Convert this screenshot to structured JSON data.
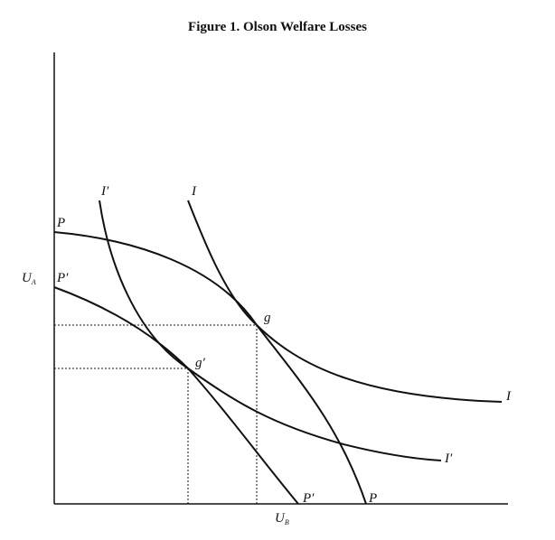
{
  "title": "Figure 1. Olson Welfare Losses",
  "axes": {
    "y_label_main": "U",
    "y_label_sub": "A",
    "x_label_main": "U",
    "x_label_sub": "B"
  },
  "curves": {
    "P": "P",
    "P_right": "P",
    "P_prime": "P′",
    "P_prime_right": "P′",
    "I": "I",
    "I_right": "I",
    "I_prime": "I′",
    "I_prime_right": "I′"
  },
  "points": {
    "g": "g",
    "g_prime": "g′"
  },
  "colors": {
    "ink": "#111111",
    "background": "#ffffff"
  }
}
